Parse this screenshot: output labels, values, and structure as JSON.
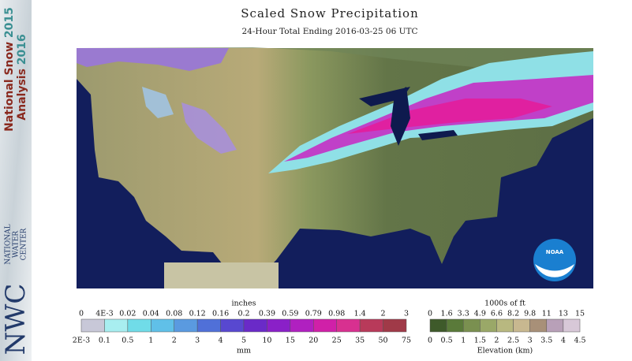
{
  "header": {
    "title": "Scaled Snow Precipitation",
    "subtitle": "24-Hour Total Ending 2016-03-25 06 UTC"
  },
  "sidebar": {
    "line1": "National Snow",
    "year1": "2015",
    "line2": "Analysis",
    "year2": "2016",
    "org": [
      "NATIONAL",
      "WATER",
      "CENTER"
    ],
    "logo": "NWC"
  },
  "map": {
    "logo": "NOAA"
  },
  "legends": [
    {
      "title": "inches",
      "top": [
        "0",
        "4E-3",
        "0.02",
        "0.04",
        "0.08",
        "0.12",
        "0.16",
        "0.2",
        "0.39",
        "0.59",
        "0.79",
        "0.98",
        "1.4",
        "2",
        "3"
      ],
      "bottom": [
        "2E-3",
        "0.1",
        "0.5",
        "1",
        "2",
        "3",
        "4",
        "5",
        "10",
        "15",
        "20",
        "25",
        "35",
        "50",
        "75"
      ],
      "footer": "mm"
    },
    {
      "title": "1000s of ft",
      "top": [
        "0",
        "1.6",
        "3.3",
        "4.9",
        "6.6",
        "8.2",
        "9.8",
        "11",
        "13",
        "15"
      ],
      "bottom": [
        "0",
        "0.5",
        "1",
        "1.5",
        "2",
        "2.5",
        "3",
        "3.5",
        "4",
        "4.5"
      ],
      "footer": "Elevation (km)"
    }
  ]
}
